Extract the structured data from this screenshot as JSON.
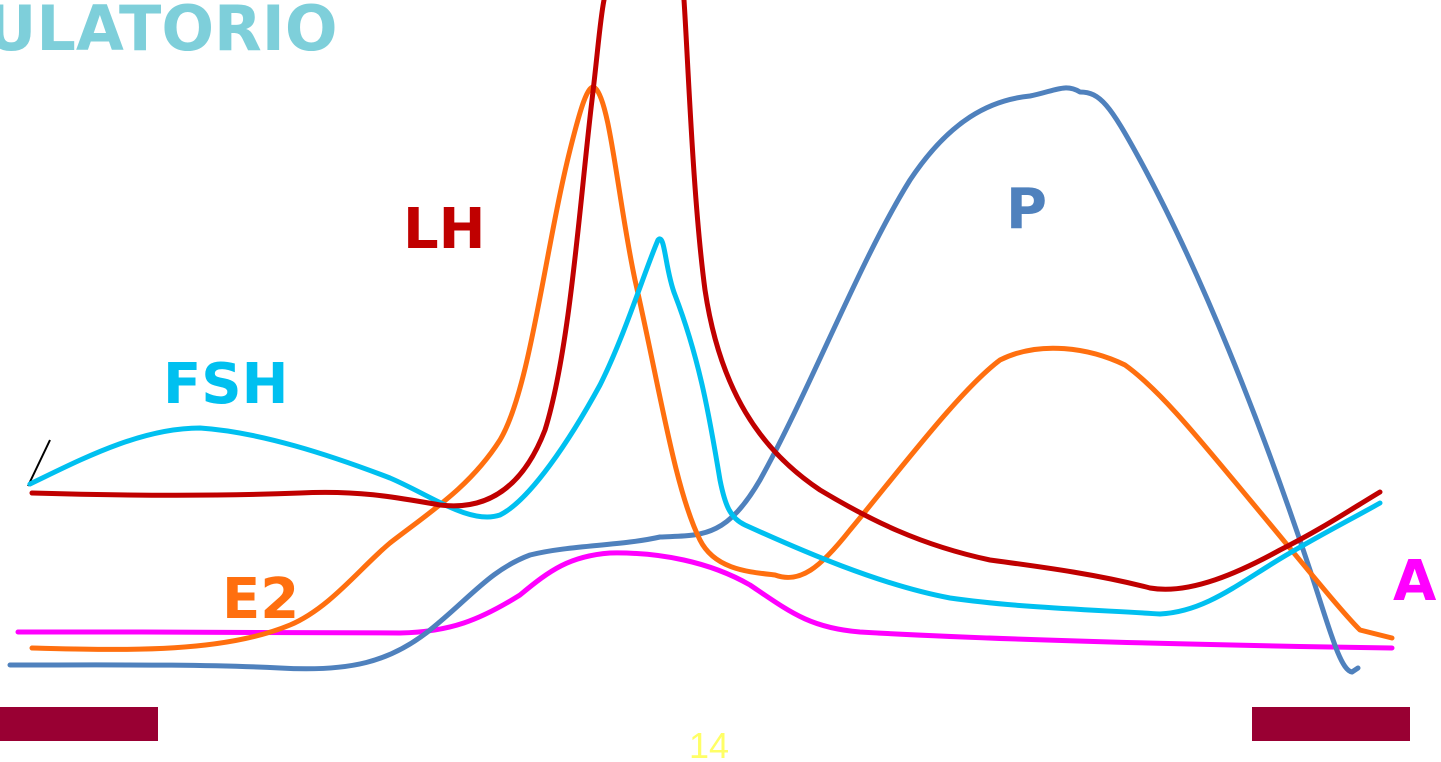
{
  "title": {
    "text": "ULATORIO",
    "color": "#7ECFDA"
  },
  "page_number": {
    "text": "14",
    "color": "#FFFF66"
  },
  "curves": [
    {
      "key": "lh",
      "label": "LH",
      "color": "#C00000"
    },
    {
      "key": "fsh",
      "label": "FSH",
      "color": "#00C0F0"
    },
    {
      "key": "e2",
      "label": "E2",
      "color": "#FF6F0F"
    },
    {
      "key": "p",
      "label": "P",
      "color": "#4F81BD"
    },
    {
      "key": "a",
      "label": "A",
      "color": "#FF00FF"
    }
  ],
  "footer_bars": {
    "color": "#990033"
  }
}
